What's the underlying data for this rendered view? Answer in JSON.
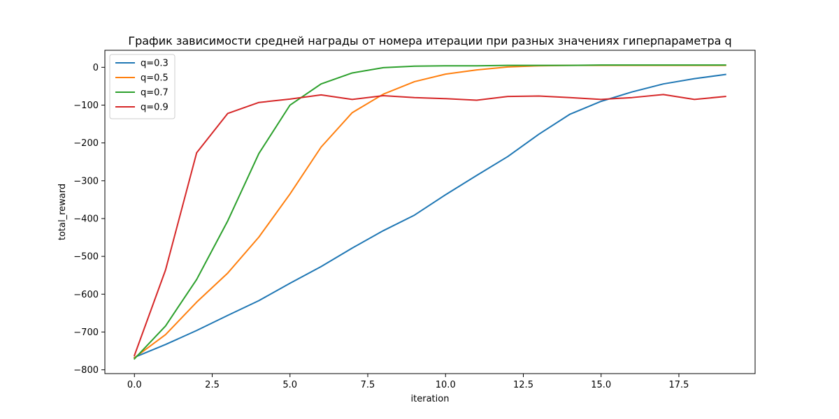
{
  "chart_data": {
    "type": "line",
    "title": "График зависимости средней награды от номера итерации при разных значениях гиперпараметра q",
    "xlabel": "iteration",
    "ylabel": "total_reward",
    "xlim": [
      -0.95,
      19.95
    ],
    "ylim": [
      -810,
      45
    ],
    "xticks": [
      0.0,
      2.5,
      5.0,
      7.5,
      10.0,
      12.5,
      15.0,
      17.5
    ],
    "xtick_labels": [
      "0.0",
      "2.5",
      "5.0",
      "7.5",
      "10.0",
      "12.5",
      "15.0",
      "17.5"
    ],
    "yticks": [
      0,
      -100,
      -200,
      -300,
      -400,
      -500,
      -600,
      -700,
      -800
    ],
    "ytick_labels": [
      "0",
      "−100",
      "−200",
      "−300",
      "−400",
      "−500",
      "−600",
      "−700",
      "−800"
    ],
    "grid": false,
    "legend_position": "top-left",
    "x": [
      0,
      1,
      2,
      3,
      4,
      5,
      6,
      7,
      8,
      9,
      10,
      11,
      12,
      13,
      14,
      15,
      16,
      17,
      18,
      19
    ],
    "series": [
      {
        "name": "q=0.3",
        "color": "#1f77b4",
        "values": [
          -767,
          -733,
          -696,
          -656,
          -617,
          -571,
          -527,
          -478,
          -432,
          -391,
          -337,
          -286,
          -236,
          -177,
          -124,
          -90,
          -65,
          -44,
          -30,
          -19
        ]
      },
      {
        "name": "q=0.5",
        "color": "#ff7f0e",
        "values": [
          -768,
          -707,
          -621,
          -544,
          -449,
          -335,
          -211,
          -120,
          -71,
          -38,
          -18,
          -7,
          1,
          4,
          5,
          5,
          5,
          5,
          5,
          5
        ]
      },
      {
        "name": "q=0.7",
        "color": "#2ca02c",
        "values": [
          -771,
          -684,
          -561,
          -406,
          -228,
          -100,
          -44,
          -15,
          -1,
          3,
          4,
          4,
          5,
          5,
          5,
          6,
          6,
          6,
          6,
          6
        ]
      },
      {
        "name": "q=0.9",
        "color": "#d62728",
        "values": [
          -762,
          -536,
          -226,
          -122,
          -93,
          -84,
          -73,
          -85,
          -75,
          -80,
          -83,
          -87,
          -77,
          -76,
          -80,
          -85,
          -80,
          -72,
          -85,
          -77
        ]
      }
    ]
  }
}
